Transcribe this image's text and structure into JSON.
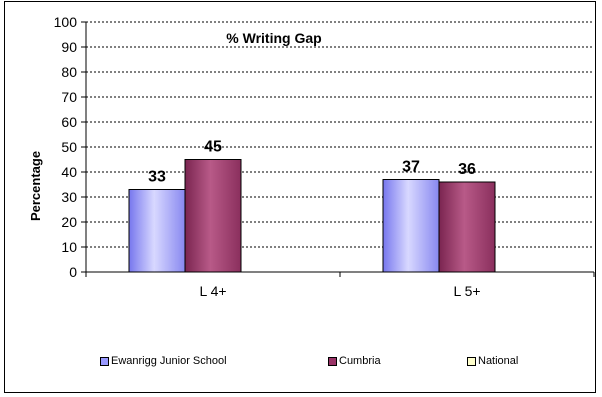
{
  "chart_data": {
    "type": "bar",
    "title": "% Writing Gap",
    "xlabel": "",
    "ylabel": "Percentage",
    "ylim": [
      0,
      100
    ],
    "yticks": [
      0,
      10,
      20,
      30,
      40,
      50,
      60,
      70,
      80,
      90,
      100
    ],
    "categories": [
      "L 4+",
      "L 5+"
    ],
    "series": [
      {
        "name": "Ewanrigg Junior School",
        "values": [
          33,
          37
        ],
        "color": "#9999ff"
      },
      {
        "name": "Cumbria",
        "values": [
          45,
          36
        ],
        "color": "#993366"
      },
      {
        "name": "National",
        "values": [
          null,
          null
        ],
        "color": "#ffffcc"
      }
    ],
    "grid": true,
    "legend_position": "bottom"
  }
}
